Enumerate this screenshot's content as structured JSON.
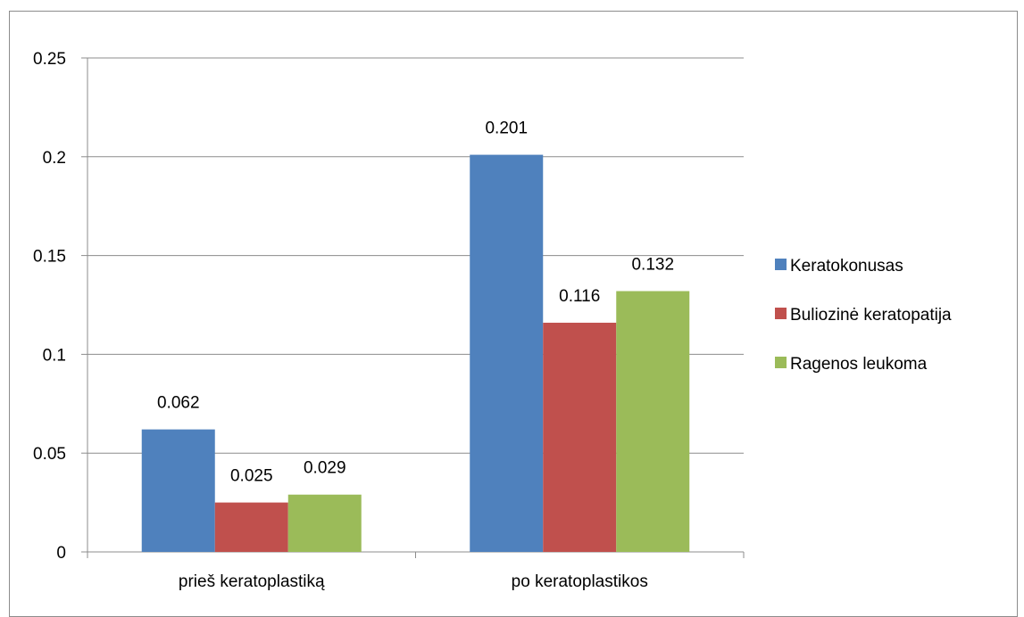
{
  "chart_data": {
    "type": "bar",
    "categories": [
      "prieš keratoplastiką",
      "po keratoplastikos"
    ],
    "series": [
      {
        "name": "Keratokonusas",
        "color": "#4f81bd",
        "values": [
          0.062,
          0.201
        ]
      },
      {
        "name": "Buliozinė keratopatija",
        "color": "#c0504d",
        "values": [
          0.025,
          0.116
        ]
      },
      {
        "name": "Ragenos leukoma",
        "color": "#9bbb59",
        "values": [
          0.029,
          0.132
        ]
      }
    ],
    "data_labels": [
      [
        "0.062",
        "0.201"
      ],
      [
        "0.025",
        "0.116"
      ],
      [
        "0.029",
        "0.132"
      ]
    ],
    "yticks": [
      "0",
      "0.05",
      "0.1",
      "0.15",
      "0.2",
      "0.25"
    ],
    "ylim": [
      0,
      0.25
    ],
    "grid": true,
    "legend": "right",
    "title": "",
    "xlabel": "",
    "ylabel": ""
  }
}
